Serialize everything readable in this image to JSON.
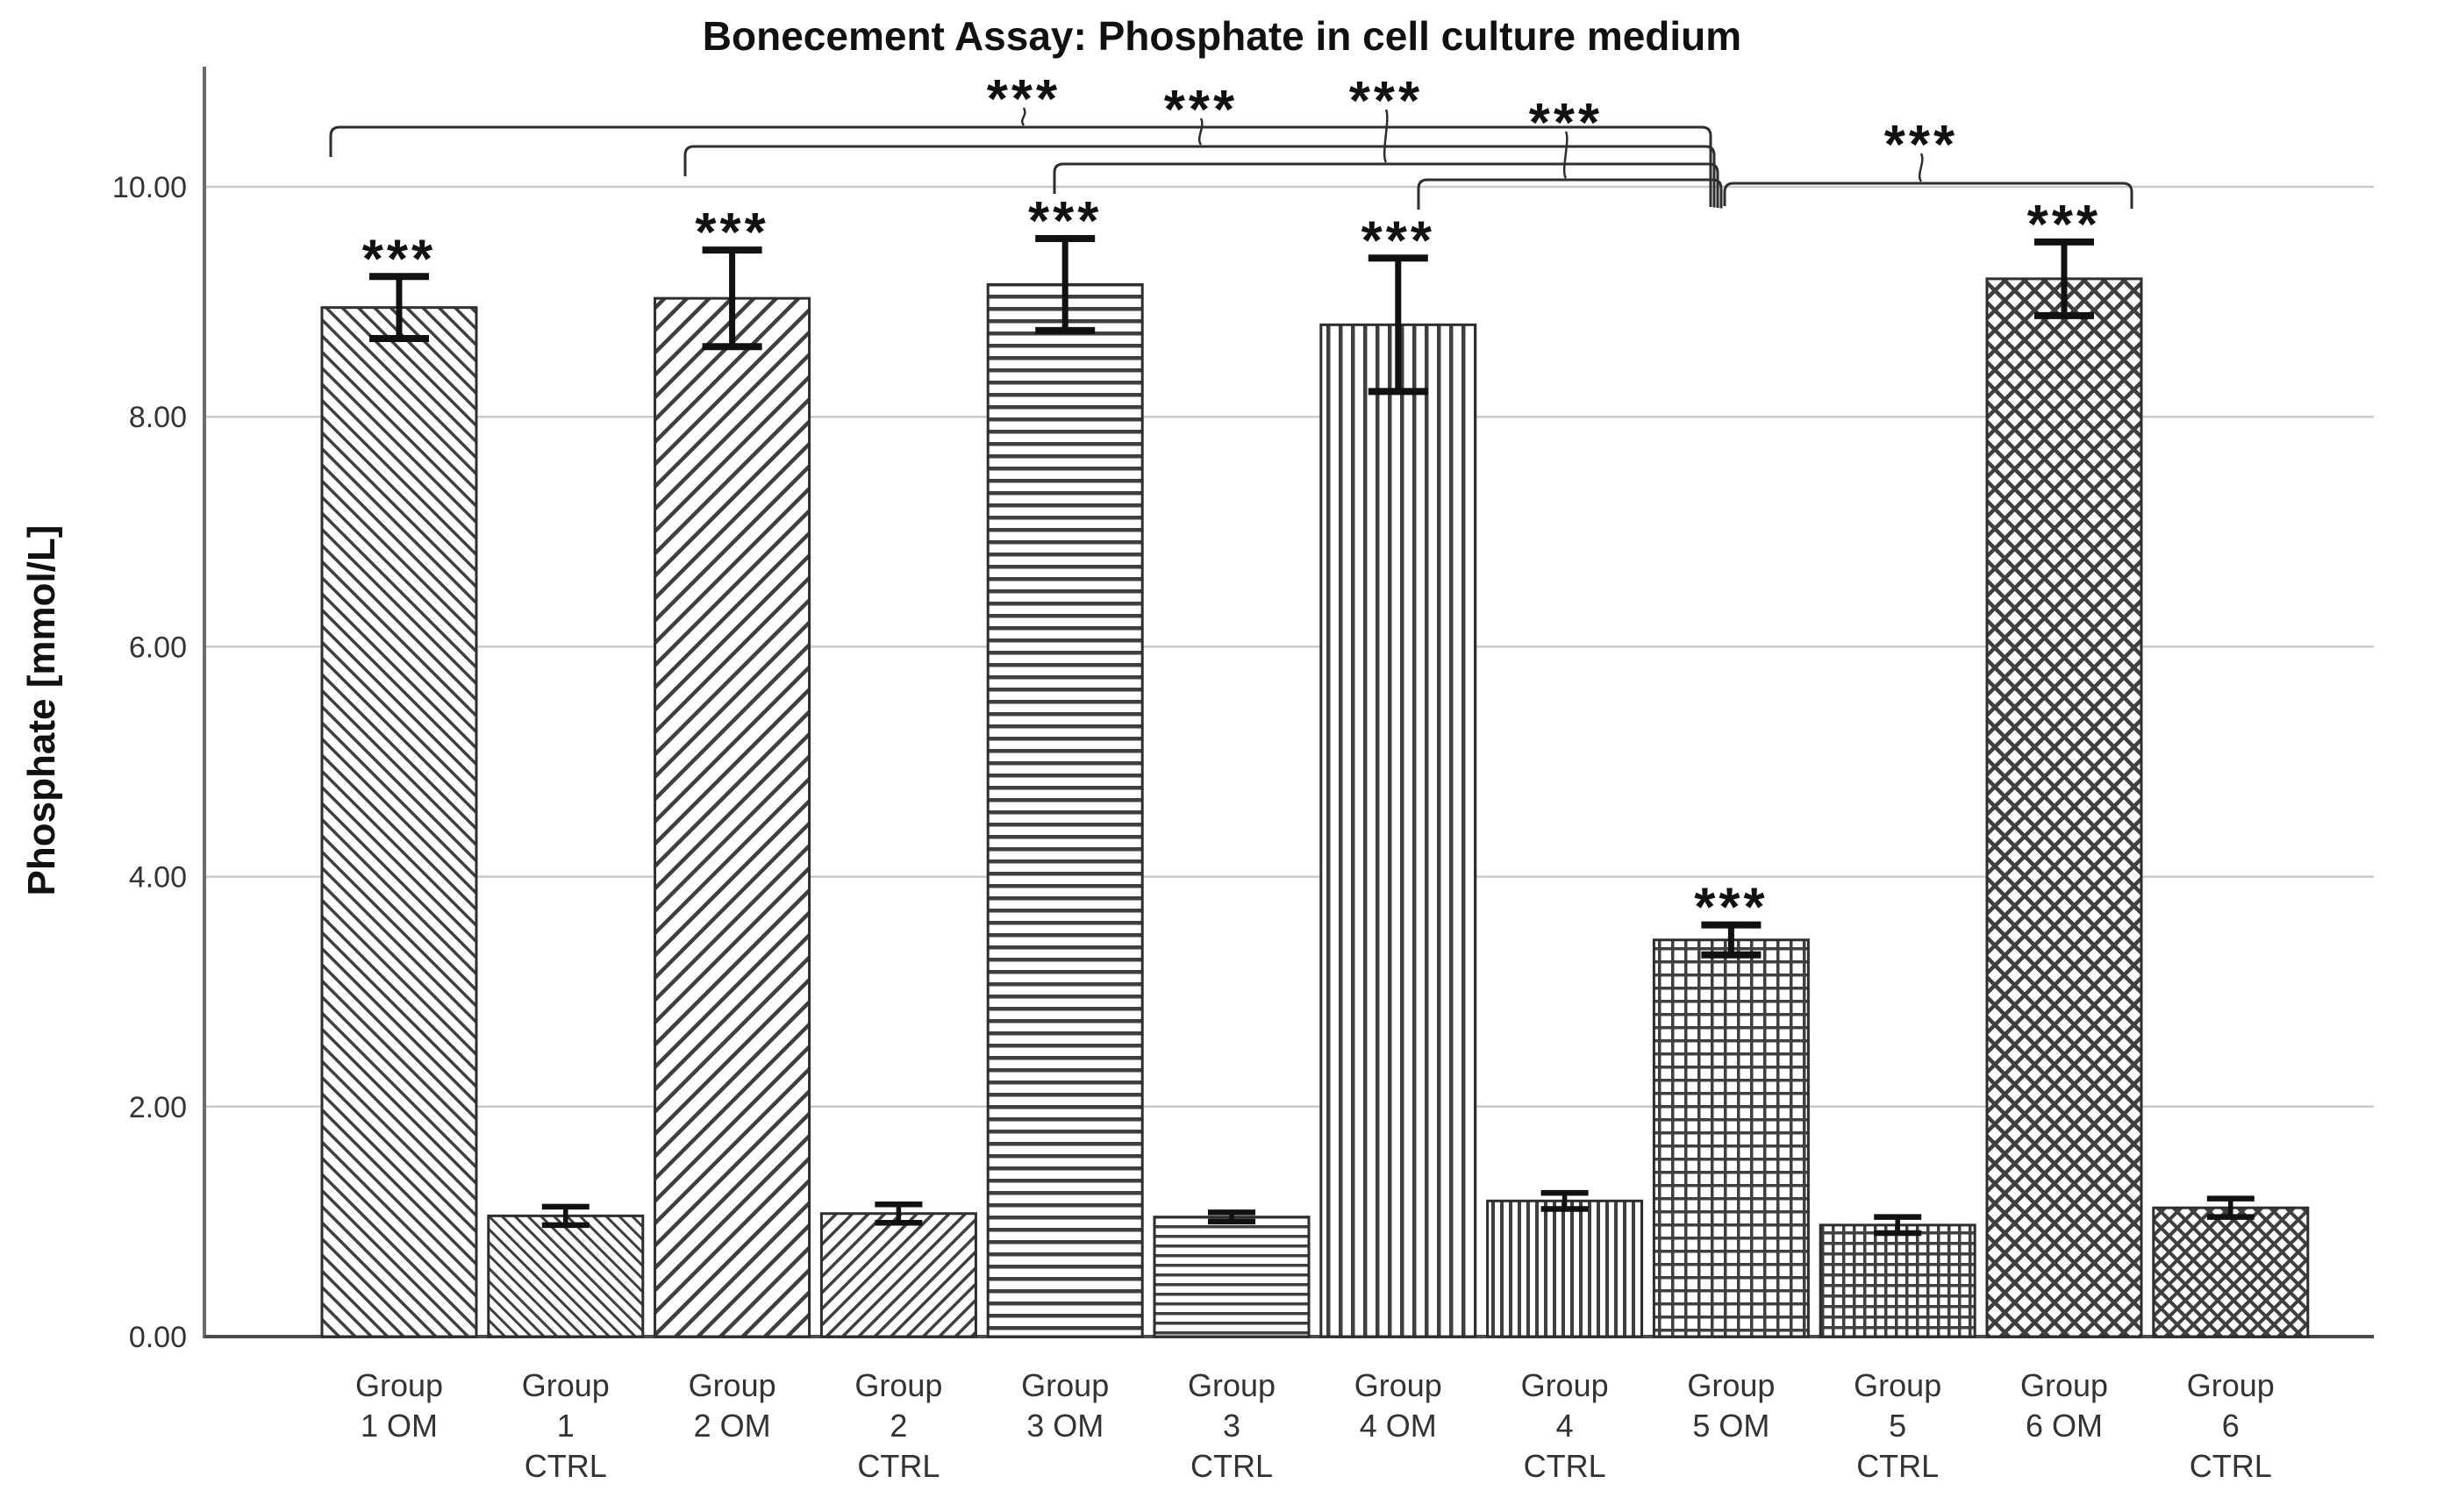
{
  "page": {
    "background": "#ffffff"
  },
  "header": {
    "title": "Bonecement Assay: Phosphate in cell culture medium"
  },
  "colors": {
    "bar_fill": "#ffffff",
    "bar_border": "#2e2e2e",
    "hatch_stroke": "#3f3f3f",
    "grid_line": "#c9c9c9",
    "axis_line": "#6b6b6b",
    "baseline": "#4a4a4a",
    "error_bar": "#111111",
    "text": "#262626",
    "bracket": "#2e2e2e",
    "significance": "#111111"
  },
  "chart_data": {
    "type": "bar",
    "title": "Bonecement Assay: Phosphate in cell culture medium",
    "xlabel": "",
    "ylabel": "Phosphate [mmol/L]",
    "units": "mmol/L",
    "ylim": [
      0,
      10.8
    ],
    "grid": "horizontal gridlines at 2.00 intervals, no legend",
    "legend_position": "none",
    "yticks": [
      {
        "value": 10,
        "label": "10.00"
      },
      {
        "value": 8,
        "label": "8.00"
      },
      {
        "value": 6,
        "label": "6.00"
      },
      {
        "value": 4,
        "label": "4.00"
      },
      {
        "value": 2,
        "label": "2.00"
      },
      {
        "value": 0,
        "label": "0.00"
      }
    ],
    "categories": [
      "Group 1 OM",
      "Group 1 CTRL",
      "Group 2 OM",
      "Group 2 CTRL",
      "Group 3 OM",
      "Group 3 CTRL",
      "Group 4 OM",
      "Group 4 CTRL",
      "Group 5 OM",
      "Group 5 CTRL",
      "Group 6 OM",
      "Group 6 CTRL"
    ],
    "bars": [
      {
        "label": "Group 1 OM",
        "label_lines": [
          "Group",
          "1 OM"
        ],
        "value": 8.95,
        "error": 0.27,
        "sig": "***",
        "hatch": "diagonal-down",
        "hatch_spacing": 13,
        "hatch_stroke": 3.5
      },
      {
        "label": "Group 1 CTRL",
        "label_lines": [
          "Group",
          "1",
          "CTRL"
        ],
        "value": 1.05,
        "error": 0.08,
        "sig": "",
        "hatch": "diagonal-down",
        "hatch_spacing": 10.5,
        "hatch_stroke": 3
      },
      {
        "label": "Group 2 OM",
        "label_lines": [
          "Group",
          "2 OM"
        ],
        "value": 9.03,
        "error": 0.42,
        "sig": "***",
        "hatch": "diagonal-up",
        "hatch_spacing": 18,
        "hatch_stroke": 4.5
      },
      {
        "label": "Group 2 CTRL",
        "label_lines": [
          "Group",
          "2",
          "CTRL"
        ],
        "value": 1.07,
        "error": 0.08,
        "sig": "",
        "hatch": "diagonal-up",
        "hatch_spacing": 13,
        "hatch_stroke": 3.5
      },
      {
        "label": "Group 3 OM",
        "label_lines": [
          "Group",
          "3 OM"
        ],
        "value": 9.15,
        "error": 0.4,
        "sig": "***",
        "hatch": "horizontal",
        "hatch_spacing": 14,
        "hatch_stroke": 4.5
      },
      {
        "label": "Group 3 CTRL",
        "label_lines": [
          "Group",
          "3",
          "CTRL"
        ],
        "value": 1.04,
        "error": 0.04,
        "sig": "",
        "hatch": "horizontal",
        "hatch_spacing": 11,
        "hatch_stroke": 3.5
      },
      {
        "label": "Group 4 OM",
        "label_lines": [
          "Group",
          "4 OM"
        ],
        "value": 8.8,
        "error": 0.58,
        "sig": "***",
        "hatch": "vertical",
        "hatch_spacing": 14,
        "hatch_stroke": 4.5
      },
      {
        "label": "Group 4 CTRL",
        "label_lines": [
          "Group",
          "4",
          "CTRL"
        ],
        "value": 1.18,
        "error": 0.07,
        "sig": "",
        "hatch": "vertical",
        "hatch_spacing": 10,
        "hatch_stroke": 4
      },
      {
        "label": "Group 5 OM",
        "label_lines": [
          "Group",
          "5 OM"
        ],
        "value": 3.45,
        "error": 0.13,
        "sig": "***",
        "hatch": "grid",
        "hatch_spacing": 15,
        "hatch_stroke": 3.5
      },
      {
        "label": "Group 5 CTRL",
        "label_lines": [
          "Group",
          "5",
          "CTRL"
        ],
        "value": 0.97,
        "error": 0.07,
        "sig": "",
        "hatch": "grid",
        "hatch_spacing": 12,
        "hatch_stroke": 3.5
      },
      {
        "label": "Group 6 OM",
        "label_lines": [
          "Group",
          "6 OM"
        ],
        "value": 9.2,
        "error": 0.32,
        "sig": "***",
        "hatch": "diamond",
        "hatch_spacing": 16,
        "hatch_stroke": 4.5
      },
      {
        "label": "Group 6 CTRL",
        "label_lines": [
          "Group",
          "6",
          "CTRL"
        ],
        "value": 1.12,
        "error": 0.08,
        "sig": "",
        "hatch": "diamond",
        "hatch_spacing": 13,
        "hatch_stroke": 4
      }
    ],
    "significance_brackets": [
      {
        "from": "Group 1 OM",
        "to": "Group 5 OM",
        "label": "***",
        "x1": 377,
        "x2": 1950,
        "y": 145,
        "label_x": 1167,
        "label_y": 103
      },
      {
        "from": "Group 2 OM",
        "to": "Group 5 OM",
        "label": "***",
        "x1": 781,
        "x2": 1954,
        "y": 167,
        "label_x": 1369,
        "label_y": 115
      },
      {
        "from": "Group 3 OM",
        "to": "Group 5 OM",
        "label": "***",
        "x1": 1202,
        "x2": 1958,
        "y": 187,
        "label_x": 1580,
        "label_y": 105
      },
      {
        "from": "Group 4 OM",
        "to": "Group 5 OM",
        "label": "***",
        "x1": 1617,
        "x2": 1962,
        "y": 205,
        "label_x": 1785,
        "label_y": 130
      },
      {
        "from": "Group 5 OM",
        "to": "Group 6 OM",
        "label": "***",
        "x1": 1966,
        "x2": 2430,
        "y": 209,
        "label_x": 2190,
        "label_y": 155
      }
    ]
  }
}
